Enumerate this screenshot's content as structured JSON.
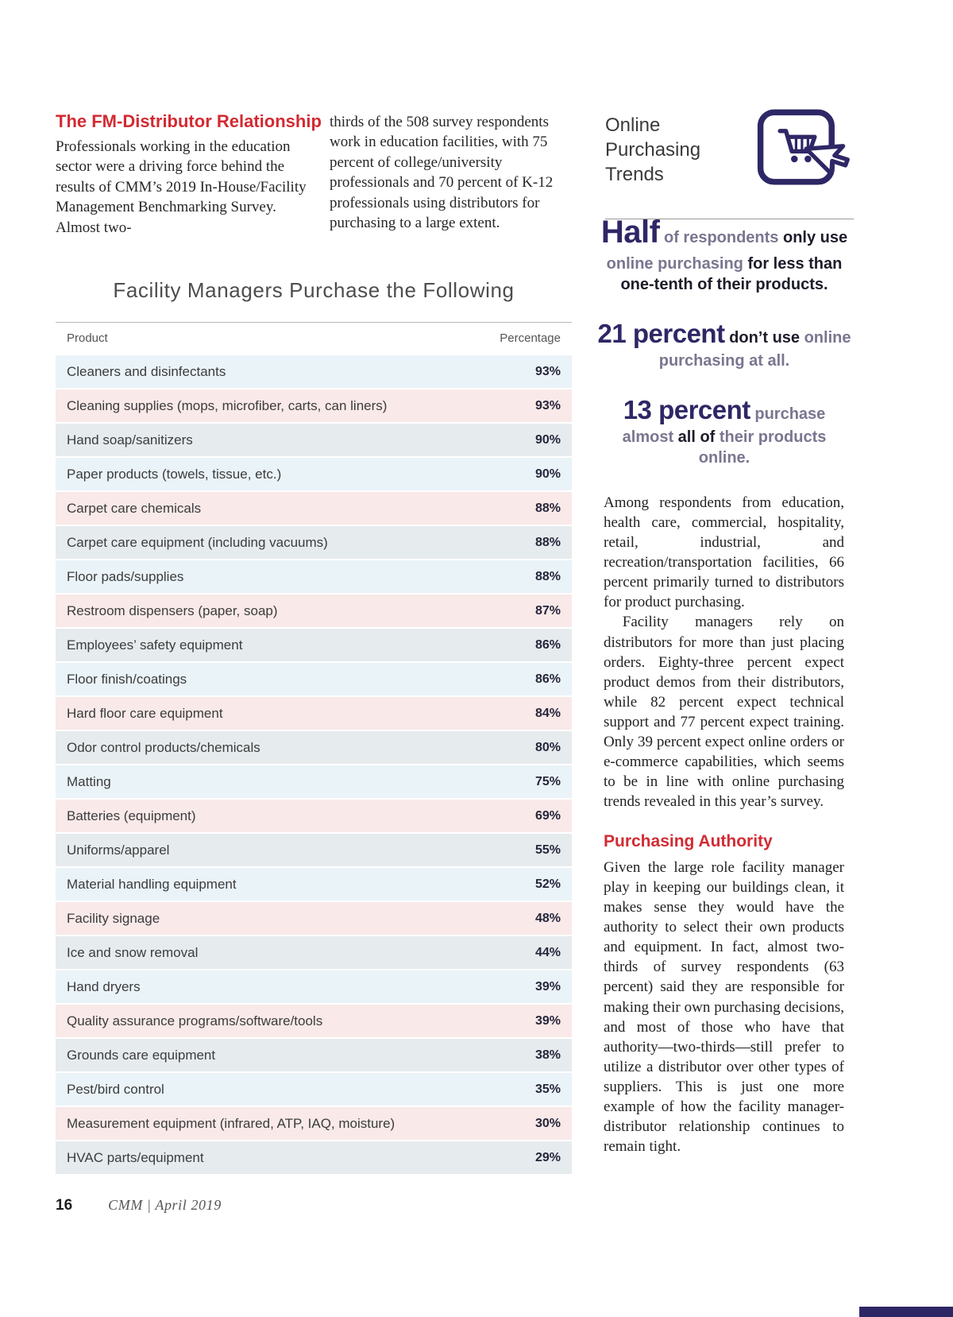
{
  "colors": {
    "red": "#d22b33",
    "navy": "#2e2766",
    "row_cycle": [
      "#eaf3f8",
      "#f9e9e9",
      "#e6ebee"
    ]
  },
  "article": {
    "heading": "The FM-Distributor Relationship",
    "col1": "Professionals working in the education sector were a driving force behind the results of CMM’s 2019 In-House/Facility Management Benchmarking Survey. Almost two-",
    "col2": "thirds of the 508 survey respondents work in education facilities, with 75 percent of college/university professionals and 70 percent of K-12 professionals using distributors for purchasing to a large extent."
  },
  "sidebar": {
    "title": "Online Purchasing Trends",
    "stat1": {
      "lead": "Half",
      "seg1": " of respondents ",
      "seg2": "only use",
      "seg3": " online purchasing ",
      "seg4": "for less than one-tenth of their products."
    },
    "stat2": {
      "lead": "21 percent",
      "seg1": " don’t use ",
      "seg2": "online purchasing at all."
    },
    "stat3": {
      "lead": "13 percent",
      "seg1": " purchase almost ",
      "seg2": "all of",
      "seg3": " their products online."
    }
  },
  "table": {
    "title": "Facility Managers Purchase the Following",
    "col_product": "Product",
    "col_percentage": "Percentage",
    "rows": [
      {
        "product": "Cleaners and disinfectants",
        "pct": "93%"
      },
      {
        "product": "Cleaning supplies (mops, microfiber, carts, can liners)",
        "pct": "93%"
      },
      {
        "product": "Hand soap/sanitizers",
        "pct": "90%"
      },
      {
        "product": "Paper products (towels, tissue, etc.)",
        "pct": "90%"
      },
      {
        "product": "Carpet care chemicals",
        "pct": "88%"
      },
      {
        "product": "Carpet care equipment (including vacuums)",
        "pct": "88%"
      },
      {
        "product": "Floor pads/supplies",
        "pct": "88%"
      },
      {
        "product": "Restroom dispensers (paper, soap)",
        "pct": "87%"
      },
      {
        "product": "Employees’ safety equipment",
        "pct": "86%"
      },
      {
        "product": "Floor finish/coatings",
        "pct": "86%"
      },
      {
        "product": "Hard floor care equipment",
        "pct": "84%"
      },
      {
        "product": "Odor control products/chemicals",
        "pct": "80%"
      },
      {
        "product": "Matting",
        "pct": "75%"
      },
      {
        "product": "Batteries (equipment)",
        "pct": "69%"
      },
      {
        "product": "Uniforms/apparel",
        "pct": "55%"
      },
      {
        "product": "Material handling equipment",
        "pct": "52%"
      },
      {
        "product": "Facility signage",
        "pct": "48%"
      },
      {
        "product": "Ice and snow removal",
        "pct": "44%"
      },
      {
        "product": "Hand dryers",
        "pct": "39%"
      },
      {
        "product": "Quality assurance programs/software/tools",
        "pct": "39%"
      },
      {
        "product": "Grounds care equipment",
        "pct": "38%"
      },
      {
        "product": "Pest/bird control",
        "pct": "35%"
      },
      {
        "product": "Measurement equipment (infrared, ATP, IAQ, moisture)",
        "pct": "30%"
      },
      {
        "product": "HVAC parts/equipment",
        "pct": "29%"
      }
    ]
  },
  "right_column": {
    "para1": "Among respondents from education, health care, commercial, hospitality, retail, industrial, and recreation/transportation facilities, 66 percent primarily turned to distributors for product purchasing.",
    "para2": "Facility managers rely on distributors for more than just placing orders. Eighty-three percent expect product demos from their distributors, while 82 percent expect technical support and 77 percent expect training. Only 39 percent expect online orders or e-commerce capabilities, which seems to be in line with online purchasing trends revealed in this year’s survey.",
    "heading2": "Purchasing Authority",
    "para3": "Given the large role facility manager play in keeping our buildings clean, it makes sense they would have the authority to select their own products and equipment. In fact, almost two-thirds of survey respondents (63 percent) said they are responsible for making their own purchasing decisions, and most of those who have that authority—two-thirds—still prefer to utilize a distributor over other types of suppliers. This is just one more example of how the facility manager-distributor relationship continues to remain tight."
  },
  "footer": {
    "page_number": "16",
    "text": "CMM | April 2019"
  }
}
